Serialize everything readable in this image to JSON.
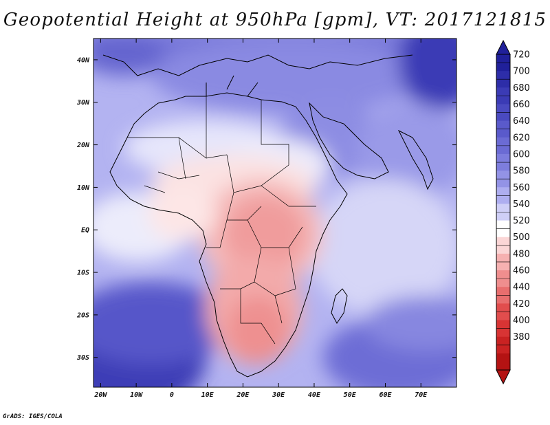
{
  "title": "Geopotential Height at 950hPa [gpm], VT: 2017121815",
  "credit": "GrADS: IGES/COLA",
  "map": {
    "region": "Africa and Middle East",
    "lat_ticks": [
      {
        "value": 40,
        "label": "40N"
      },
      {
        "value": 30,
        "label": "30N"
      },
      {
        "value": 20,
        "label": "20N"
      },
      {
        "value": 10,
        "label": "10N"
      },
      {
        "value": 0,
        "label": "EQ"
      },
      {
        "value": -10,
        "label": "10S"
      },
      {
        "value": -20,
        "label": "20S"
      },
      {
        "value": -30,
        "label": "30S"
      }
    ],
    "lon_ticks": [
      {
        "value": -20,
        "label": "20W"
      },
      {
        "value": -10,
        "label": "10W"
      },
      {
        "value": 0,
        "label": "0"
      },
      {
        "value": 10,
        "label": "10E"
      },
      {
        "value": 20,
        "label": "20E"
      },
      {
        "value": 30,
        "label": "30E"
      },
      {
        "value": 40,
        "label": "40E"
      },
      {
        "value": 50,
        "label": "50E"
      },
      {
        "value": 60,
        "label": "60E"
      },
      {
        "value": 70,
        "label": "70E"
      }
    ],
    "lon_range": [
      -22,
      80
    ],
    "lat_range": [
      -37,
      45
    ]
  },
  "colorbar": {
    "labels": [
      "720",
      "700",
      "680",
      "660",
      "640",
      "620",
      "600",
      "580",
      "560",
      "540",
      "520",
      "500",
      "480",
      "460",
      "440",
      "420",
      "400",
      "380"
    ],
    "colors": [
      "#20209a",
      "#2d2da8",
      "#3b3bb5",
      "#4a4ac0",
      "#5a5acb",
      "#6b6bd4",
      "#7d7ddd",
      "#9393e6",
      "#aeaef0",
      "#cfcff7",
      "#ffffff",
      "#fbd6d6",
      "#f6b1b1",
      "#ef8e8e",
      "#e86e6e",
      "#e14d4d",
      "#d83434",
      "#c92222",
      "#b41313"
    ]
  },
  "colors": {
    "land_border": "#000000",
    "background": "#ffffff"
  }
}
